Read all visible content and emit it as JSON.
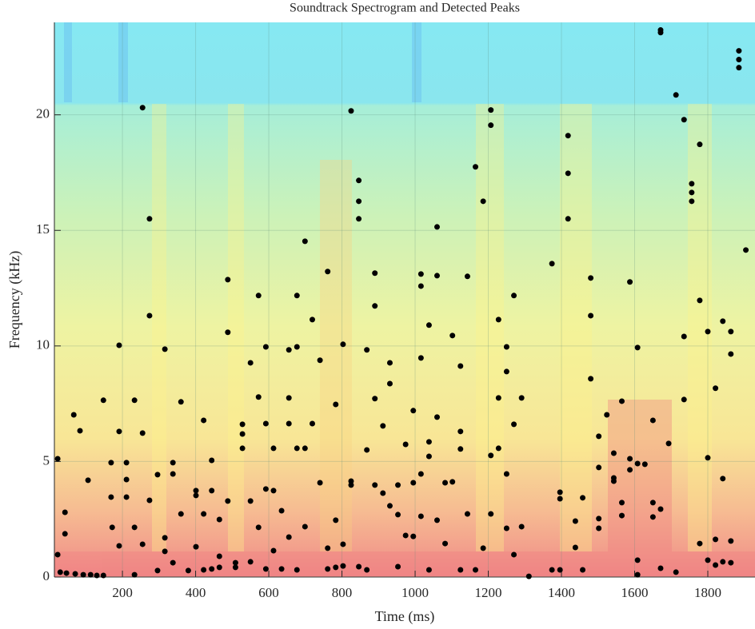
{
  "chart_data": {
    "type": "scatter",
    "title": "Soundtrack Spectrogram and Detected Peaks",
    "x_label": "Time (ms)",
    "y_label": "Frequency (kHz)",
    "color": "#000000",
    "grid": true,
    "xlim": [
      14,
      1929
    ],
    "ylim": [
      0,
      24
    ],
    "xticks": [
      200,
      400,
      600,
      800,
      1000,
      1200,
      1400,
      1600,
      1800
    ],
    "yticks": [
      0,
      5,
      10,
      15,
      20
    ],
    "x": [
      23,
      23,
      43,
      43,
      30,
      47,
      67,
      71,
      84,
      93,
      106,
      113,
      130,
      148,
      148,
      169,
      169,
      172,
      191,
      191,
      191,
      211,
      211,
      211,
      233,
      233,
      233,
      255,
      255,
      255,
      274,
      274,
      274,
      296,
      296,
      316,
      316,
      316,
      338,
      338,
      338,
      360,
      360,
      380,
      401,
      401,
      401,
      422,
      422,
      422,
      444,
      444,
      444,
      465,
      465,
      465,
      488,
      488,
      488,
      509,
      509,
      528,
      528,
      528,
      550,
      550,
      550,
      572,
      572,
      572,
      592,
      592,
      592,
      592,
      613,
      613,
      613,
      635,
      635,
      655,
      655,
      655,
      655,
      677,
      677,
      677,
      677,
      699,
      699,
      699,
      719,
      719,
      740,
      740,
      761,
      761,
      761,
      783,
      783,
      783,
      803,
      803,
      803,
      825,
      825,
      825,
      846,
      846,
      846,
      846,
      868,
      868,
      868,
      890,
      890,
      890,
      890,
      912,
      912,
      931,
      931,
      931,
      953,
      953,
      953,
      974,
      974,
      995,
      995,
      995,
      1016,
      1016,
      1016,
      1016,
      1016,
      1038,
      1038,
      1038,
      1038,
      1060,
      1060,
      1060,
      1060,
      1082,
      1082,
      1102,
      1102,
      1124,
      1124,
      1124,
      1124,
      1143,
      1143,
      1165,
      1165,
      1186,
      1186,
      1207,
      1207,
      1207,
      1207,
      1228,
      1228,
      1228,
      1250,
      1250,
      1250,
      1250,
      1270,
      1270,
      1270,
      1291,
      1291,
      1311,
      1374,
      1374,
      1396,
      1396,
      1396,
      1418,
      1418,
      1418,
      1438,
      1438,
      1458,
      1458,
      1480,
      1480,
      1480,
      1502,
      1502,
      1502,
      1502,
      1524,
      1543,
      1543,
      1543,
      1565,
      1565,
      1565,
      1587,
      1587,
      1587,
      1608,
      1608,
      1608,
      1608,
      1628,
      1650,
      1650,
      1650,
      1671,
      1671,
      1671,
      1671,
      1693,
      1713,
      1713,
      1735,
      1735,
      1735,
      1756,
      1756,
      1756,
      1778,
      1778,
      1778,
      1800,
      1800,
      1800,
      1821,
      1821,
      1821,
      1841,
      1841,
      1841,
      1863,
      1863,
      1863,
      1863,
      1885,
      1885,
      1885,
      1904
    ],
    "values": [
      5.12,
      0.97,
      2.8,
      1.87,
      0.21,
      0.17,
      7.02,
      0.14,
      6.33,
      0.1,
      4.19,
      0.1,
      0.07,
      0.07,
      7.65,
      3.46,
      4.95,
      2.15,
      10.03,
      6.3,
      1.35,
      4.95,
      4.22,
      3.46,
      7.65,
      2.15,
      0.1,
      20.31,
      6.23,
      1.42,
      15.5,
      11.31,
      3.32,
      4.43,
      0.28,
      9.86,
      1.7,
      1.11,
      4.95,
      4.46,
      0.62,
      7.58,
      2.73,
      0.28,
      3.74,
      3.53,
      1.31,
      6.78,
      2.73,
      0.31,
      5.05,
      3.74,
      0.35,
      2.49,
      0.9,
      0.42,
      12.87,
      10.59,
      3.29,
      0.62,
      0.42,
      6.61,
      6.19,
      5.57,
      9.27,
      3.29,
      0.66,
      12.18,
      7.79,
      2.15,
      9.96,
      6.64,
      3.81,
      0.35,
      5.57,
      3.74,
      1.14,
      2.87,
      0.35,
      9.83,
      7.75,
      6.64,
      1.73,
      12.18,
      9.96,
      5.57,
      0.31,
      14.53,
      5.57,
      2.18,
      11.14,
      6.64,
      9.38,
      4.08,
      13.22,
      1.25,
      0.35,
      7.47,
      2.46,
      0.42,
      10.07,
      1.42,
      0.48,
      20.17,
      4.15,
      3.98,
      17.16,
      16.26,
      15.5,
      0.45,
      9.83,
      5.5,
      0.31,
      13.15,
      11.73,
      7.72,
      3.98,
      6.54,
      3.63,
      9.27,
      8.37,
      3.08,
      3.98,
      2.7,
      0.45,
      5.74,
      1.8,
      7.2,
      4.08,
      1.76,
      13.11,
      12.59,
      9.48,
      4.46,
      2.63,
      10.9,
      5.85,
      5.22,
      0.31,
      15.15,
      13.04,
      6.92,
      2.46,
      4.08,
      1.45,
      10.45,
      4.12,
      9.13,
      6.3,
      5.54,
      0.31,
      13.01,
      2.73,
      17.75,
      0.31,
      16.26,
      1.25,
      20.21,
      19.55,
      5.26,
      2.73,
      11.14,
      7.75,
      5.57,
      9.96,
      8.89,
      4.46,
      2.11,
      12.18,
      6.61,
      0.97,
      7.75,
      2.18,
      0.03,
      13.56,
      0.31,
      3.67,
      3.39,
      0.31,
      19.1,
      17.47,
      15.5,
      2.42,
      1.28,
      3.43,
      0.31,
      12.94,
      11.31,
      8.58,
      6.09,
      4.74,
      2.53,
      2.11,
      7.02,
      5.36,
      4.29,
      4.15,
      7.61,
      3.22,
      2.66,
      12.77,
      5.12,
      4.64,
      9.93,
      4.91,
      0.73,
      0.1,
      4.88,
      6.78,
      3.22,
      2.6,
      23.67,
      23.56,
      2.94,
      0.38,
      5.78,
      20.86,
      0.21,
      19.79,
      10.41,
      7.68,
      17.02,
      16.64,
      16.26,
      18.72,
      11.97,
      1.45,
      10.62,
      5.16,
      0.73,
      8.17,
      1.63,
      0.52,
      11.07,
      4.26,
      0.66,
      10.62,
      9.65,
      1.56,
      0.62,
      22.77,
      22.39,
      22.04,
      14.15
    ]
  }
}
